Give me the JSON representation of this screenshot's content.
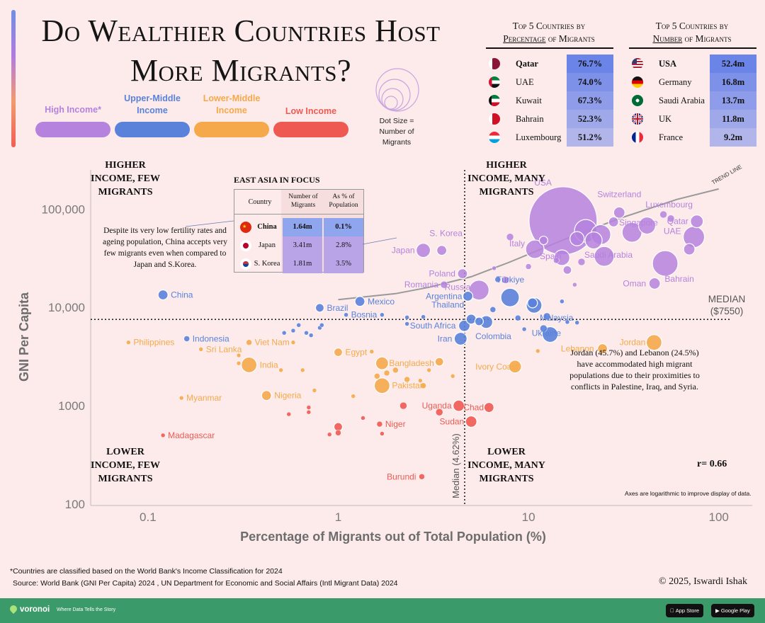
{
  "title": "Do Wealthier Countries Host More Migrants?",
  "legend": {
    "categories": [
      {
        "label": "High Income*",
        "color": "#b582de"
      },
      {
        "label": "Upper-Middle Income",
        "color": "#5b82da"
      },
      {
        "label": "Lower-Middle Income",
        "color": "#f5a94a"
      },
      {
        "label": "Low Income",
        "color": "#ee5a52"
      }
    ],
    "dot_size_note": "Dot Size = Number of Migrants"
  },
  "top5_percentage": {
    "title_pre": "Top 5 Countries by",
    "title_underlined": "Percentage",
    "title_post": "of Migrants",
    "rows": [
      {
        "country": "Qatar",
        "value": "76.7%",
        "flag": "qatar"
      },
      {
        "country": "UAE",
        "value": "74.0%",
        "flag": "uae"
      },
      {
        "country": "Kuwait",
        "value": "67.3%",
        "flag": "kuwait"
      },
      {
        "country": "Bahrain",
        "value": "52.3%",
        "flag": "bahrain"
      },
      {
        "country": "Luxembourg",
        "value": "51.2%",
        "flag": "luxembourg"
      }
    ]
  },
  "top5_number": {
    "title_pre": "Top 5 Countries by",
    "title_underlined": "Number",
    "title_post": "of Migrants",
    "rows": [
      {
        "country": "USA",
        "value": "52.4m",
        "flag": "usa"
      },
      {
        "country": "Germany",
        "value": "16.8m",
        "flag": "germany"
      },
      {
        "country": "Saudi Arabia",
        "value": "13.7m",
        "flag": "saudi"
      },
      {
        "country": "UK",
        "value": "11.8m",
        "flag": "uk"
      },
      {
        "country": "France",
        "value": "9.2m",
        "flag": "france"
      }
    ]
  },
  "quadrants": {
    "top_left": "Higher Income, Few Migrants",
    "top_right": "Higher Income, Many Migrants",
    "bottom_left": "Lower Income, Few Migrants",
    "bottom_right": "Lower Income, Many Migrants"
  },
  "east_asia": {
    "title": "East Asia in Focus",
    "headers": [
      "Country",
      "Number of Migrants",
      "As % of Population"
    ],
    "rows": [
      {
        "country": "China",
        "number": "1.64m",
        "percent": "0.1%"
      },
      {
        "country": "Japan",
        "number": "3.41m",
        "percent": "2.8%"
      },
      {
        "country": "S. Korea",
        "number": "1.81m",
        "percent": "3.5%"
      }
    ]
  },
  "notes": {
    "china": "Despite its very low fertility rates and ageing population, China accepts very few migrants even when compared to Japan and S.Korea.",
    "jordan_lebanon": "Jordan (45.7%) and Lebanon (24.5%) have accommodated high migrant populations due to their proximities to conflicts in Palestine, Iraq, and Syria.",
    "r_value": "r= 0.66",
    "axes_note": "Axes are logarithmic to improve display of data."
  },
  "footnotes": {
    "classification": "*Countries are classified based on the World Bank's Income Classification for 2024",
    "source": "Source: World Bank (GNI Per Capita) 2024 , UN Department for Economic and Social Affairs (Intl Migrant Data) 2024",
    "credit": "© 2025, Iswardi Ishak"
  },
  "footer": {
    "brand": "voronoi",
    "tagline": "Where Data Tells the Story",
    "app_store": "App Store",
    "google_play": "Google Play"
  },
  "chart_data": {
    "type": "scatter",
    "x_scale": "log",
    "y_scale": "log",
    "xlabel": "Percentage of Migrants out of Total Population (%)",
    "ylabel": "GNI Per Capita",
    "xlim": [
      0.05,
      150
    ],
    "ylim": [
      100,
      250000
    ],
    "x_ticks": [
      {
        "value": 0.1,
        "label": "0.1"
      },
      {
        "value": 1,
        "label": "1"
      },
      {
        "value": 10,
        "label": "10"
      },
      {
        "value": 100,
        "label": "100"
      }
    ],
    "y_ticks": [
      {
        "value": 100,
        "label": "100"
      },
      {
        "value": 1000,
        "label": "1000"
      },
      {
        "value": 10000,
        "label": "10,000"
      },
      {
        "value": 100000,
        "label": "100,000"
      }
    ],
    "median_x": {
      "value": 4.62,
      "label": "Median (4.62%)"
    },
    "median_y": {
      "value": 7550,
      "label_line1": "MEDIAN",
      "label_line2": "($7550)"
    },
    "trend_label": "TREND LINE",
    "trend_line": [
      [
        1,
        12000
      ],
      [
        2,
        13800
      ],
      [
        3,
        16000
      ],
      [
        5,
        20500
      ],
      [
        8,
        29000
      ],
      [
        15,
        48000
      ],
      [
        30,
        80000
      ],
      [
        60,
        125000
      ],
      [
        100,
        160000
      ]
    ],
    "colors": {
      "H": "#b582de",
      "U": "#5b82da",
      "L": "#f5a94a",
      "W": "#ee5a52"
    },
    "points": [
      {
        "name": "USA",
        "x": 15.2,
        "y": 76000,
        "c": "H",
        "r": 48
      },
      {
        "name": "Switzerland",
        "x": 30,
        "y": 92000,
        "c": "H",
        "r": 8
      },
      {
        "name": "Luxembourg",
        "x": 51.2,
        "y": 88000,
        "c": "H",
        "r": 5
      },
      {
        "name": "Singapore",
        "x": 42,
        "y": 68000,
        "c": "H",
        "r": 12
      },
      {
        "name": "Qatar",
        "x": 76.7,
        "y": 75000,
        "c": "H",
        "r": 9
      },
      {
        "name": "UAE",
        "x": 74,
        "y": 52000,
        "c": "H",
        "r": 15
      },
      {
        "name": "Saudi Arabia",
        "x": 25,
        "y": 33000,
        "c": "H",
        "r": 14
      },
      {
        "name": "Bahrain",
        "x": 52.3,
        "y": 28000,
        "c": "H",
        "r": 18
      },
      {
        "name": "Oman",
        "x": 46,
        "y": 17500,
        "c": "H",
        "r": 8
      },
      {
        "name": "Italy",
        "x": 10.8,
        "y": 39000,
        "c": "H",
        "r": 13
      },
      {
        "name": "Spain",
        "x": 15,
        "y": 32000,
        "c": "H",
        "r": 11
      },
      {
        "name": "Japan",
        "x": 2.8,
        "y": 38000,
        "c": "H",
        "r": 10
      },
      {
        "name": "S. Korea",
        "x": 3.5,
        "y": 38000,
        "c": "H",
        "r": 7
      },
      {
        "name": "Poland",
        "x": 4.5,
        "y": 22000,
        "c": "H",
        "r": 7
      },
      {
        "name": "Romania",
        "x": 3.6,
        "y": 17000,
        "c": "H",
        "r": 5
      },
      {
        "name": "Russia",
        "x": 5.5,
        "y": 15000,
        "c": "H",
        "r": 14
      },
      {
        "name": "",
        "x": 20,
        "y": 60000,
        "c": "H",
        "r": 16
      },
      {
        "name": "",
        "x": 24,
        "y": 55000,
        "c": "H",
        "r": 14
      },
      {
        "name": "",
        "x": 22,
        "y": 48000,
        "c": "H",
        "r": 12
      },
      {
        "name": "",
        "x": 18,
        "y": 50000,
        "c": "H",
        "r": 10
      },
      {
        "name": "",
        "x": 35,
        "y": 58000,
        "c": "H",
        "r": 14
      },
      {
        "name": "",
        "x": 28,
        "y": 74000,
        "c": "H",
        "r": 7
      },
      {
        "name": "",
        "x": 12,
        "y": 48000,
        "c": "H",
        "r": 6
      },
      {
        "name": "",
        "x": 8,
        "y": 52000,
        "c": "H",
        "r": 5
      },
      {
        "name": "",
        "x": 16,
        "y": 24000,
        "c": "H",
        "r": 6
      },
      {
        "name": "",
        "x": 19,
        "y": 29000,
        "c": "H",
        "r": 5
      },
      {
        "name": "",
        "x": 70,
        "y": 39000,
        "c": "H",
        "r": 8
      },
      {
        "name": "",
        "x": 56,
        "y": 80000,
        "c": "H",
        "r": 5
      },
      {
        "name": "",
        "x": 10,
        "y": 26000,
        "c": "H",
        "r": 4
      },
      {
        "name": "",
        "x": 6.6,
        "y": 25000,
        "c": "H",
        "r": 3
      },
      {
        "name": "",
        "x": 7.6,
        "y": 19000,
        "c": "H",
        "r": 5
      },
      {
        "name": "",
        "x": 14,
        "y": 30000,
        "c": "H",
        "r": 4
      },
      {
        "name": "",
        "x": 17.5,
        "y": 17000,
        "c": "H",
        "r": 3
      },
      {
        "name": "China",
        "x": 0.12,
        "y": 13400,
        "c": "U",
        "r": 7
      },
      {
        "name": "Brazil",
        "x": 0.8,
        "y": 9900,
        "c": "U",
        "r": 6
      },
      {
        "name": "Mexico",
        "x": 1.3,
        "y": 11500,
        "c": "U",
        "r": 7
      },
      {
        "name": "Bosnia",
        "x": 1.1,
        "y": 8400,
        "c": "U",
        "r": 3
      },
      {
        "name": "Argentina",
        "x": 4.8,
        "y": 13000,
        "c": "U",
        "r": 7
      },
      {
        "name": "Türkiye",
        "x": 6.9,
        "y": 19200,
        "c": "U",
        "r": 4
      },
      {
        "name": "Thailand",
        "x": 5,
        "y": 7600,
        "c": "U",
        "r": 7
      },
      {
        "name": "South Africa",
        "x": 4.6,
        "y": 6500,
        "c": "U",
        "r": 8
      },
      {
        "name": "Iran",
        "x": 4.4,
        "y": 4800,
        "c": "U",
        "r": 9
      },
      {
        "name": "Colombia",
        "x": 6,
        "y": 7100,
        "c": "U",
        "r": 9
      },
      {
        "name": "Malaysia",
        "x": 10.7,
        "y": 10500,
        "c": "U",
        "r": 11
      },
      {
        "name": "Ukraine",
        "x": 13,
        "y": 5300,
        "c": "U",
        "r": 11
      },
      {
        "name": "Indonesia",
        "x": 0.16,
        "y": 4800,
        "c": "U",
        "r": 4
      },
      {
        "name": "",
        "x": 8,
        "y": 12600,
        "c": "U",
        "r": 13
      },
      {
        "name": "",
        "x": 10.5,
        "y": 11100,
        "c": "U",
        "r": 7
      },
      {
        "name": "",
        "x": 5.5,
        "y": 7200,
        "c": "U",
        "r": 6
      },
      {
        "name": "",
        "x": 12,
        "y": 6100,
        "c": "U",
        "r": 5
      },
      {
        "name": "",
        "x": 8.8,
        "y": 7800,
        "c": "U",
        "r": 4
      },
      {
        "name": "",
        "x": 12.5,
        "y": 8100,
        "c": "U",
        "r": 5
      },
      {
        "name": "",
        "x": 6.5,
        "y": 9500,
        "c": "U",
        "r": 4
      },
      {
        "name": "",
        "x": 9.5,
        "y": 6000,
        "c": "U",
        "r": 3
      },
      {
        "name": "",
        "x": 16,
        "y": 7100,
        "c": "U",
        "r": 3
      },
      {
        "name": "",
        "x": 18,
        "y": 7000,
        "c": "U",
        "r": 3
      },
      {
        "name": "",
        "x": 15,
        "y": 11500,
        "c": "U",
        "r": 3
      },
      {
        "name": "",
        "x": 2.3,
        "y": 7900,
        "c": "U",
        "r": 3
      },
      {
        "name": "",
        "x": 2.3,
        "y": 6800,
        "c": "U",
        "r": 3
      },
      {
        "name": "",
        "x": 2.8,
        "y": 8000,
        "c": "U",
        "r": 3
      },
      {
        "name": "",
        "x": 1.7,
        "y": 8400,
        "c": "U",
        "r": 3
      },
      {
        "name": "",
        "x": 0.8,
        "y": 6200,
        "c": "U",
        "r": 3
      },
      {
        "name": "",
        "x": 0.82,
        "y": 6600,
        "c": "U",
        "r": 3
      },
      {
        "name": "",
        "x": 0.62,
        "y": 6600,
        "c": "U",
        "r": 3
      },
      {
        "name": "",
        "x": 0.58,
        "y": 5800,
        "c": "U",
        "r": 3
      },
      {
        "name": "",
        "x": 0.52,
        "y": 5500,
        "c": "U",
        "r": 3
      },
      {
        "name": "",
        "x": 0.68,
        "y": 5500,
        "c": "U",
        "r": 3
      },
      {
        "name": "",
        "x": 0.72,
        "y": 5200,
        "c": "U",
        "r": 3
      },
      {
        "name": "Philippines",
        "x": 0.079,
        "y": 4400,
        "c": "L",
        "r": 3
      },
      {
        "name": "Sri Lanka",
        "x": 0.19,
        "y": 3750,
        "c": "L",
        "r": 3
      },
      {
        "name": "Viet Nam",
        "x": 0.34,
        "y": 4400,
        "c": "L",
        "r": 4
      },
      {
        "name": "India",
        "x": 0.34,
        "y": 2600,
        "c": "L",
        "r": 11
      },
      {
        "name": "Egypt",
        "x": 1,
        "y": 3500,
        "c": "L",
        "r": 6
      },
      {
        "name": "Bangladesh",
        "x": 1.7,
        "y": 2700,
        "c": "L",
        "r": 9
      },
      {
        "name": "Pakistan",
        "x": 1.7,
        "y": 1600,
        "c": "L",
        "r": 11
      },
      {
        "name": "Myanmar",
        "x": 0.15,
        "y": 1200,
        "c": "L",
        "r": 3
      },
      {
        "name": "Nigeria",
        "x": 0.42,
        "y": 1270,
        "c": "L",
        "r": 7
      },
      {
        "name": "Ivory Coast",
        "x": 8.5,
        "y": 2500,
        "c": "L",
        "r": 9
      },
      {
        "name": "Lebanon",
        "x": 24.5,
        "y": 3800,
        "c": "L",
        "r": 7
      },
      {
        "name": "Jordan",
        "x": 45.7,
        "y": 4400,
        "c": "L",
        "r": 11
      },
      {
        "name": "",
        "x": 3.4,
        "y": 2800,
        "c": "L",
        "r": 6
      },
      {
        "name": "",
        "x": 2,
        "y": 2300,
        "c": "L",
        "r": 4
      },
      {
        "name": "",
        "x": 1.8,
        "y": 2150,
        "c": "L",
        "r": 4
      },
      {
        "name": "",
        "x": 1.6,
        "y": 2000,
        "c": "L",
        "r": 4
      },
      {
        "name": "",
        "x": 2.3,
        "y": 1850,
        "c": "L",
        "r": 4
      },
      {
        "name": "",
        "x": 2.7,
        "y": 1800,
        "c": "L",
        "r": 3
      },
      {
        "name": "",
        "x": 2.8,
        "y": 1600,
        "c": "L",
        "r": 4
      },
      {
        "name": "",
        "x": 3,
        "y": 2300,
        "c": "L",
        "r": 3
      },
      {
        "name": "",
        "x": 4,
        "y": 2000,
        "c": "L",
        "r": 3
      },
      {
        "name": "",
        "x": 1.5,
        "y": 3550,
        "c": "L",
        "r": 3
      },
      {
        "name": "",
        "x": 1.2,
        "y": 1250,
        "c": "L",
        "r": 3
      },
      {
        "name": "",
        "x": 0.5,
        "y": 2300,
        "c": "L",
        "r": 3
      },
      {
        "name": "",
        "x": 0.58,
        "y": 4400,
        "c": "L",
        "r": 3
      },
      {
        "name": "",
        "x": 0.3,
        "y": 2700,
        "c": "L",
        "r": 3
      },
      {
        "name": "",
        "x": 0.3,
        "y": 3250,
        "c": "L",
        "r": 3
      },
      {
        "name": "",
        "x": 0.65,
        "y": 2300,
        "c": "L",
        "r": 3
      },
      {
        "name": "",
        "x": 0.75,
        "y": 1430,
        "c": "L",
        "r": 3
      },
      {
        "name": "",
        "x": 11.2,
        "y": 3600,
        "c": "L",
        "r": 3
      },
      {
        "name": "Uganda",
        "x": 4.3,
        "y": 1000,
        "c": "W",
        "r": 8
      },
      {
        "name": "Chad",
        "x": 6.2,
        "y": 960,
        "c": "W",
        "r": 7
      },
      {
        "name": "Sudan",
        "x": 5,
        "y": 690,
        "c": "W",
        "r": 8
      },
      {
        "name": "Niger",
        "x": 1.65,
        "y": 650,
        "c": "W",
        "r": 4
      },
      {
        "name": "Madagascar",
        "x": 0.12,
        "y": 500,
        "c": "W",
        "r": 3
      },
      {
        "name": "Burundi",
        "x": 2.75,
        "y": 190,
        "c": "W",
        "r": 4
      },
      {
        "name": "",
        "x": 1,
        "y": 610,
        "c": "W",
        "r": 6
      },
      {
        "name": "",
        "x": 1,
        "y": 530,
        "c": "W",
        "r": 4
      },
      {
        "name": "",
        "x": 0.9,
        "y": 510,
        "c": "W",
        "r": 3
      },
      {
        "name": "",
        "x": 1.35,
        "y": 750,
        "c": "W",
        "r": 3
      },
      {
        "name": "",
        "x": 2.2,
        "y": 1000,
        "c": "W",
        "r": 5
      },
      {
        "name": "",
        "x": 3.4,
        "y": 860,
        "c": "W",
        "r": 5
      },
      {
        "name": "",
        "x": 1.7,
        "y": 520,
        "c": "W",
        "r": 3
      },
      {
        "name": "",
        "x": 0.7,
        "y": 960,
        "c": "W",
        "r": 3
      },
      {
        "name": "",
        "x": 0.55,
        "y": 820,
        "c": "W",
        "r": 3
      },
      {
        "name": "",
        "x": 0.7,
        "y": 860,
        "c": "W",
        "r": 3
      }
    ]
  }
}
